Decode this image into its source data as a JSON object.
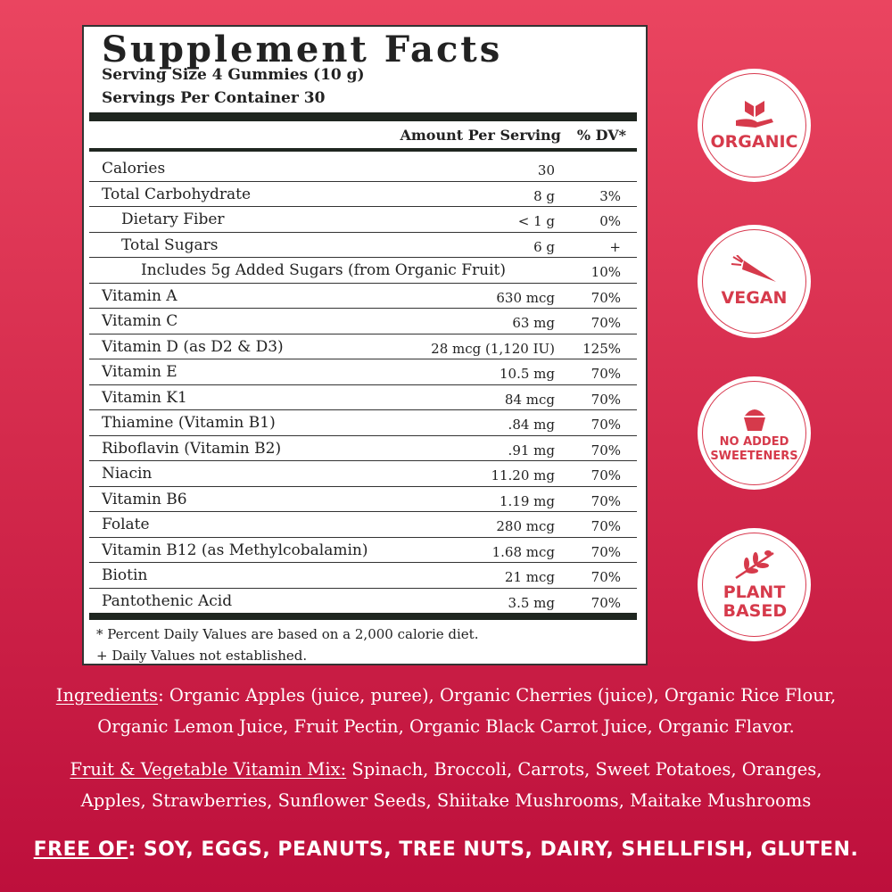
{
  "panel": {
    "title": "Supplement Facts",
    "serving_size": "Serving Size 4 Gummies (10 g)",
    "servings_per_container": "Servings Per Container 30",
    "col_amount": "Amount Per Serving",
    "col_dv": "% DV*",
    "rows": [
      {
        "name": "Calories",
        "amount": "30",
        "dv": ""
      },
      {
        "name": "Total Carbohydrate",
        "amount": "8 g",
        "dv": "3%"
      },
      {
        "name": "Dietary Fiber",
        "amount": "< 1 g",
        "dv": "0%"
      },
      {
        "name": "Total Sugars",
        "amount": "6 g",
        "dv": "+"
      },
      {
        "name": "Includes 5g Added Sugars (from Organic Fruit)",
        "amount": "",
        "dv": "10%"
      },
      {
        "name": "Vitamin A",
        "amount": "630 mcg",
        "dv": "70%"
      },
      {
        "name": "Vitamin C",
        "amount": "63 mg",
        "dv": "70%"
      },
      {
        "name": "Vitamin D (as D2 & D3)",
        "amount": "28 mcg (1,120 IU)",
        "dv": "125%"
      },
      {
        "name": "Vitamin E",
        "amount": "10.5 mg",
        "dv": "70%"
      },
      {
        "name": "Vitamin K1",
        "amount": "84 mcg",
        "dv": "70%"
      },
      {
        "name": "Thiamine (Vitamin B1)",
        "amount": ".84 mg",
        "dv": "70%"
      },
      {
        "name": "Riboflavin (Vitamin B2)",
        "amount": ".91 mg",
        "dv": "70%"
      },
      {
        "name": "Niacin",
        "amount": "11.20 mg",
        "dv": "70%"
      },
      {
        "name": "Vitamin B6",
        "amount": "1.19 mg",
        "dv": "70%"
      },
      {
        "name": "Folate",
        "amount": "280 mcg",
        "dv": "70%"
      },
      {
        "name": "Vitamin B12 (as Methylcobalamin)",
        "amount": "1.68 mcg",
        "dv": "70%"
      },
      {
        "name": "Biotin",
        "amount": "21 mcg",
        "dv": "70%"
      },
      {
        "name": "Pantothenic Acid",
        "amount": "3.5 mg",
        "dv": "70%"
      }
    ],
    "footnote1": "* Percent Daily Values are based on a 2,000 calorie diet.",
    "footnote2": "+ Daily Values not established."
  },
  "ingredients": {
    "label": "Ingredients",
    "line1": ": Organic Apples (juice, puree), Organic Cherries (juice),  Organic Rice Flour,",
    "line2": "Organic Lemon Juice, Fruit Pectin, Organic Black Carrot Juice, Organic Flavor."
  },
  "vitamin_mix": {
    "label": "Fruit & Vegetable Vitamin Mix:",
    "line1": " Spinach, Broccoli, Carrots, Sweet Potatoes, Oranges,",
    "line2": "Apples, Strawberries, Sunflower Seeds, Shiitake Mushrooms, Maitake Mushrooms"
  },
  "free_of": {
    "label": "FREE OF",
    "text": ": SOY, EGGS, PEANUTS, TREE NUTS, DAIRY, SHELLFISH, GLUTEN."
  },
  "badges": [
    {
      "label": "ORGANIC",
      "icon": "hand-leaf-icon"
    },
    {
      "label": "VEGAN",
      "icon": "carrot-icon"
    },
    {
      "label": "NO ADDED SWEETENERS",
      "icon": "cupcake-icon"
    },
    {
      "label": "PLANT BASED",
      "icon": "branch-icon"
    }
  ],
  "colors": {
    "accent": "#d63a4b",
    "bg_top": "#ea4560",
    "bg_bottom": "#bd0f3c"
  }
}
